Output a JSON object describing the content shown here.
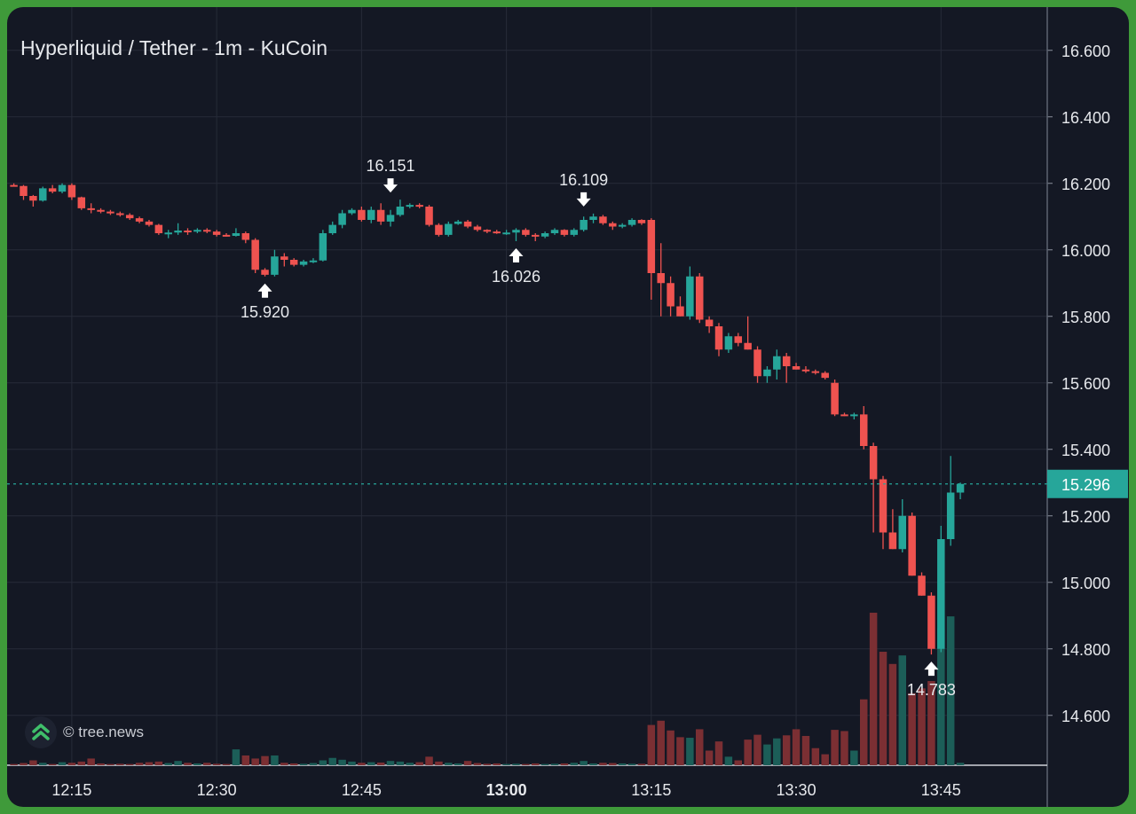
{
  "chart_data": {
    "type": "candlestick",
    "title": "Hyperliquid / Tether - 1m - KuCoin",
    "watermark": "© tree.news",
    "x_tick_labels": [
      "12:15",
      "12:30",
      "12:45",
      "13:00",
      "13:15",
      "13:30",
      "13:45"
    ],
    "x_tick_minutes": [
      15,
      30,
      45,
      60,
      75,
      90,
      105
    ],
    "bold_tick": "13:00",
    "y_ticks": [
      "16.600",
      "16.400",
      "16.200",
      "16.000",
      "15.800",
      "15.600",
      "15.400",
      "15.200",
      "15.000",
      "14.800",
      "14.600"
    ],
    "y_range": [
      14.45,
      16.73
    ],
    "x_range_minutes": [
      8.3,
      116
    ],
    "current_price": {
      "value": 15.296,
      "label": "15.296"
    },
    "annotations": [
      {
        "label": "16.151",
        "minute": 48,
        "price": 16.151,
        "direction": "down"
      },
      {
        "label": "16.109",
        "minute": 68,
        "price": 16.109,
        "direction": "down"
      },
      {
        "label": "15.920",
        "minute": 35,
        "price": 15.92,
        "direction": "up"
      },
      {
        "label": "16.026",
        "minute": 61,
        "price": 16.026,
        "direction": "up"
      },
      {
        "label": "14.783",
        "minute": 104,
        "price": 14.783,
        "direction": "up"
      }
    ],
    "colors": {
      "up": "#26a69a",
      "down": "#ef5350",
      "vol_up": "#1c5e58",
      "vol_down": "#7b2f33",
      "grid": "#262b38",
      "text": "#e6e8ec",
      "price_tag": "#26a69a"
    },
    "candles": [
      [
        9,
        16.195,
        16.2,
        16.19,
        16.192,
        10
      ],
      [
        10,
        16.192,
        16.195,
        16.15,
        16.162,
        18
      ],
      [
        11,
        16.162,
        16.165,
        16.13,
        16.148,
        40
      ],
      [
        12,
        16.148,
        16.19,
        16.145,
        16.185,
        20
      ],
      [
        13,
        16.185,
        16.195,
        16.17,
        16.175,
        10
      ],
      [
        14,
        16.175,
        16.2,
        16.17,
        16.195,
        25
      ],
      [
        15,
        16.195,
        16.2,
        16.15,
        16.158,
        20
      ],
      [
        16,
        16.158,
        16.16,
        16.12,
        16.125,
        30
      ],
      [
        17,
        16.125,
        16.14,
        16.11,
        16.12,
        55
      ],
      [
        18,
        16.12,
        16.125,
        16.11,
        16.115,
        15
      ],
      [
        19,
        16.115,
        16.12,
        16.105,
        16.11,
        10
      ],
      [
        20,
        16.11,
        16.115,
        16.1,
        16.105,
        12
      ],
      [
        21,
        16.105,
        16.11,
        16.09,
        16.095,
        10
      ],
      [
        22,
        16.095,
        16.1,
        16.08,
        16.085,
        20
      ],
      [
        23,
        16.085,
        16.09,
        16.07,
        16.075,
        25
      ],
      [
        24,
        16.075,
        16.078,
        16.045,
        16.05,
        30
      ],
      [
        25,
        16.05,
        16.06,
        16.035,
        16.052,
        18
      ],
      [
        26,
        16.052,
        16.08,
        16.045,
        16.058,
        35
      ],
      [
        27,
        16.058,
        16.065,
        16.045,
        16.055,
        20
      ],
      [
        28,
        16.055,
        16.065,
        16.05,
        16.06,
        15
      ],
      [
        29,
        16.06,
        16.065,
        16.05,
        16.055,
        20
      ],
      [
        30,
        16.055,
        16.06,
        16.04,
        16.045,
        12
      ],
      [
        31,
        16.045,
        16.05,
        16.04,
        16.042,
        10
      ],
      [
        32,
        16.042,
        16.065,
        16.04,
        16.05,
        130
      ],
      [
        33,
        16.05,
        16.055,
        16.02,
        16.03,
        80
      ],
      [
        34,
        16.03,
        16.035,
        15.93,
        15.94,
        55
      ],
      [
        35,
        15.94,
        15.945,
        15.92,
        15.925,
        75
      ],
      [
        36,
        15.925,
        16.0,
        15.92,
        15.98,
        80
      ],
      [
        37,
        15.98,
        15.99,
        15.95,
        15.97,
        20
      ],
      [
        38,
        15.97,
        15.975,
        15.95,
        15.955,
        15
      ],
      [
        39,
        15.955,
        15.97,
        15.95,
        15.965,
        12
      ],
      [
        40,
        15.965,
        15.975,
        15.96,
        15.968,
        18
      ],
      [
        41,
        15.968,
        16.06,
        15.965,
        16.05,
        40
      ],
      [
        42,
        16.05,
        16.085,
        16.045,
        16.075,
        60
      ],
      [
        43,
        16.075,
        16.12,
        16.065,
        16.11,
        45
      ],
      [
        44,
        16.11,
        16.125,
        16.105,
        16.12,
        30
      ],
      [
        45,
        16.12,
        16.13,
        16.085,
        16.09,
        20
      ],
      [
        46,
        16.09,
        16.13,
        16.08,
        16.12,
        25
      ],
      [
        47,
        16.12,
        16.14,
        16.075,
        16.085,
        22
      ],
      [
        48,
        16.085,
        16.12,
        16.07,
        16.105,
        35
      ],
      [
        49,
        16.105,
        16.151,
        16.1,
        16.13,
        30
      ],
      [
        50,
        16.13,
        16.14,
        16.125,
        16.135,
        20
      ],
      [
        51,
        16.135,
        16.14,
        16.125,
        16.13,
        25
      ],
      [
        52,
        16.13,
        16.135,
        16.07,
        16.075,
        70
      ],
      [
        53,
        16.075,
        16.08,
        16.04,
        16.045,
        30
      ],
      [
        54,
        16.045,
        16.085,
        16.04,
        16.078,
        20
      ],
      [
        55,
        16.078,
        16.09,
        16.075,
        16.085,
        15
      ],
      [
        56,
        16.085,
        16.09,
        16.065,
        16.07,
        35
      ],
      [
        57,
        16.07,
        16.075,
        16.055,
        16.06,
        18
      ],
      [
        58,
        16.06,
        16.062,
        16.05,
        16.055,
        12
      ],
      [
        59,
        16.055,
        16.06,
        16.048,
        16.05,
        15
      ],
      [
        60,
        16.05,
        16.06,
        16.045,
        16.052,
        10
      ],
      [
        61,
        16.052,
        16.065,
        16.026,
        16.06,
        12
      ],
      [
        62,
        16.06,
        16.065,
        16.04,
        16.045,
        10
      ],
      [
        63,
        16.045,
        16.05,
        16.026,
        16.04,
        15
      ],
      [
        64,
        16.04,
        16.055,
        16.035,
        16.05,
        10
      ],
      [
        65,
        16.05,
        16.065,
        16.045,
        16.06,
        12
      ],
      [
        66,
        16.06,
        16.062,
        16.04,
        16.045,
        15
      ],
      [
        67,
        16.045,
        16.065,
        16.04,
        16.06,
        20
      ],
      [
        68,
        16.06,
        16.1,
        16.055,
        16.09,
        35
      ],
      [
        69,
        16.09,
        16.109,
        16.08,
        16.1,
        15
      ],
      [
        70,
        16.1,
        16.105,
        16.075,
        16.08,
        20
      ],
      [
        71,
        16.08,
        16.085,
        16.06,
        16.07,
        18
      ],
      [
        72,
        16.07,
        16.08,
        16.065,
        16.075,
        15
      ],
      [
        73,
        16.075,
        16.095,
        16.07,
        16.09,
        12
      ],
      [
        74,
        16.09,
        16.092,
        16.075,
        16.08,
        12
      ],
      [
        75,
        16.09,
        16.095,
        15.85,
        15.93,
        330
      ],
      [
        76,
        15.93,
        16.02,
        15.8,
        15.9,
        365
      ],
      [
        77,
        15.9,
        15.92,
        15.8,
        15.83,
        285
      ],
      [
        78,
        15.83,
        15.86,
        15.8,
        15.8,
        230
      ],
      [
        79,
        15.8,
        15.95,
        15.79,
        15.92,
        225
      ],
      [
        80,
        15.92,
        15.93,
        15.78,
        15.79,
        295
      ],
      [
        81,
        15.79,
        15.8,
        15.75,
        15.77,
        120
      ],
      [
        82,
        15.77,
        15.78,
        15.68,
        15.7,
        195
      ],
      [
        83,
        15.7,
        15.75,
        15.69,
        15.74,
        70
      ],
      [
        84,
        15.74,
        15.75,
        15.71,
        15.72,
        40
      ],
      [
        85,
        15.72,
        15.8,
        15.7,
        15.7,
        210
      ],
      [
        86,
        15.7,
        15.71,
        15.6,
        15.62,
        250
      ],
      [
        87,
        15.62,
        15.65,
        15.6,
        15.64,
        170
      ],
      [
        88,
        15.64,
        15.7,
        15.61,
        15.68,
        220
      ],
      [
        89,
        15.68,
        15.69,
        15.6,
        15.65,
        245
      ],
      [
        90,
        15.65,
        15.66,
        15.64,
        15.64,
        295
      ],
      [
        91,
        15.64,
        15.65,
        15.63,
        15.635,
        240
      ],
      [
        92,
        15.635,
        15.64,
        15.625,
        15.63,
        140
      ],
      [
        93,
        15.63,
        15.635,
        15.61,
        15.615,
        90
      ],
      [
        94,
        15.6,
        15.61,
        15.5,
        15.505,
        290
      ],
      [
        95,
        15.505,
        15.51,
        15.5,
        15.5,
        280
      ],
      [
        96,
        15.5,
        15.51,
        15.49,
        15.505,
        120
      ],
      [
        97,
        15.505,
        15.53,
        15.4,
        15.41,
        540
      ],
      [
        98,
        15.41,
        15.42,
        15.15,
        15.31,
        1250
      ],
      [
        99,
        15.31,
        15.32,
        15.1,
        15.15,
        930
      ],
      [
        100,
        15.15,
        15.22,
        15.1,
        15.1,
        830
      ],
      [
        101,
        15.1,
        15.25,
        15.09,
        15.2,
        900
      ],
      [
        102,
        15.2,
        15.21,
        15.02,
        15.02,
        590
      ],
      [
        103,
        15.02,
        15.03,
        14.96,
        14.96,
        630
      ],
      [
        104,
        14.96,
        14.97,
        14.783,
        14.8,
        690
      ],
      [
        105,
        14.8,
        15.17,
        14.79,
        15.13,
        1120
      ],
      [
        106,
        15.13,
        15.38,
        15.11,
        15.27,
        1220
      ],
      [
        107,
        15.27,
        15.3,
        15.25,
        15.296,
        20
      ]
    ]
  }
}
